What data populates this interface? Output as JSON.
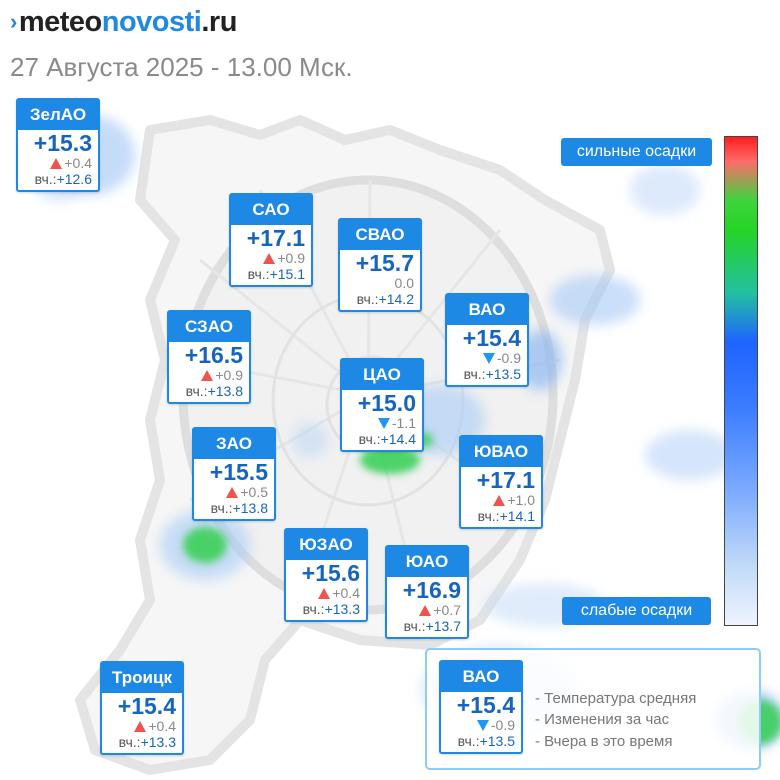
{
  "header": {
    "logo_part1": "meteo",
    "logo_part2": "novosti",
    "logo_part3": ".ru",
    "date": "27 Августа 2025 - 13.00 Мск."
  },
  "districts": [
    {
      "name": "ЗелАО",
      "temp": "+15.3",
      "dir": "up",
      "change": "+0.4",
      "yesterday_label": "вч.:",
      "yesterday": "+12.6"
    },
    {
      "name": "САО",
      "temp": "+17.1",
      "dir": "up",
      "change": "+0.9",
      "yesterday_label": "вч.:",
      "yesterday": "+15.1"
    },
    {
      "name": "СВАО",
      "temp": "+15.7",
      "dir": "none",
      "change": "0.0",
      "yesterday_label": "вч.:",
      "yesterday": "+14.2"
    },
    {
      "name": "ВАО",
      "temp": "+15.4",
      "dir": "down",
      "change": "-0.9",
      "yesterday_label": "вч.:",
      "yesterday": "+13.5"
    },
    {
      "name": "СЗАО",
      "temp": "+16.5",
      "dir": "up",
      "change": "+0.9",
      "yesterday_label": "вч.:",
      "yesterday": "+13.8"
    },
    {
      "name": "ЦАО",
      "temp": "+15.0",
      "dir": "down",
      "change": "-1.1",
      "yesterday_label": "вч.:",
      "yesterday": "+14.4"
    },
    {
      "name": "ЗАО",
      "temp": "+15.5",
      "dir": "up",
      "change": "+0.5",
      "yesterday_label": "вч.:",
      "yesterday": "+13.8"
    },
    {
      "name": "ЮВАО",
      "temp": "+17.1",
      "dir": "up",
      "change": "+1.0",
      "yesterday_label": "вч.:",
      "yesterday": "+14.1"
    },
    {
      "name": "ЮЗАО",
      "temp": "+15.6",
      "dir": "up",
      "change": "+0.4",
      "yesterday_label": "вч.:",
      "yesterday": "+13.3"
    },
    {
      "name": "ЮАО",
      "temp": "+16.9",
      "dir": "up",
      "change": "+0.7",
      "yesterday_label": "вч.:",
      "yesterday": "+13.7"
    },
    {
      "name": "Троицк",
      "temp": "+15.4",
      "dir": "up",
      "change": "+0.4",
      "yesterday_label": "вч.:",
      "yesterday": "+13.3"
    }
  ],
  "precip_scale": {
    "top_label": "сильные осадки",
    "bottom_label": "слабые осадки",
    "colors": [
      "#ff1e1e",
      "#26d426",
      "#1e64ff",
      "#eef4ff"
    ]
  },
  "legend": {
    "sample": {
      "name": "ВАО",
      "temp": "+15.4",
      "dir": "down",
      "change": "-0.9",
      "yesterday_label": "вч.:",
      "yesterday": "+13.5"
    },
    "line1": "- Температура средняя",
    "line2": "- Изменения за час",
    "line3": "- Вчера в это время"
  },
  "colors": {
    "accent": "#1e88e5",
    "temp_text": "#1565c0",
    "up_arrow": "#ef5350",
    "down_arrow": "#2196f3"
  }
}
